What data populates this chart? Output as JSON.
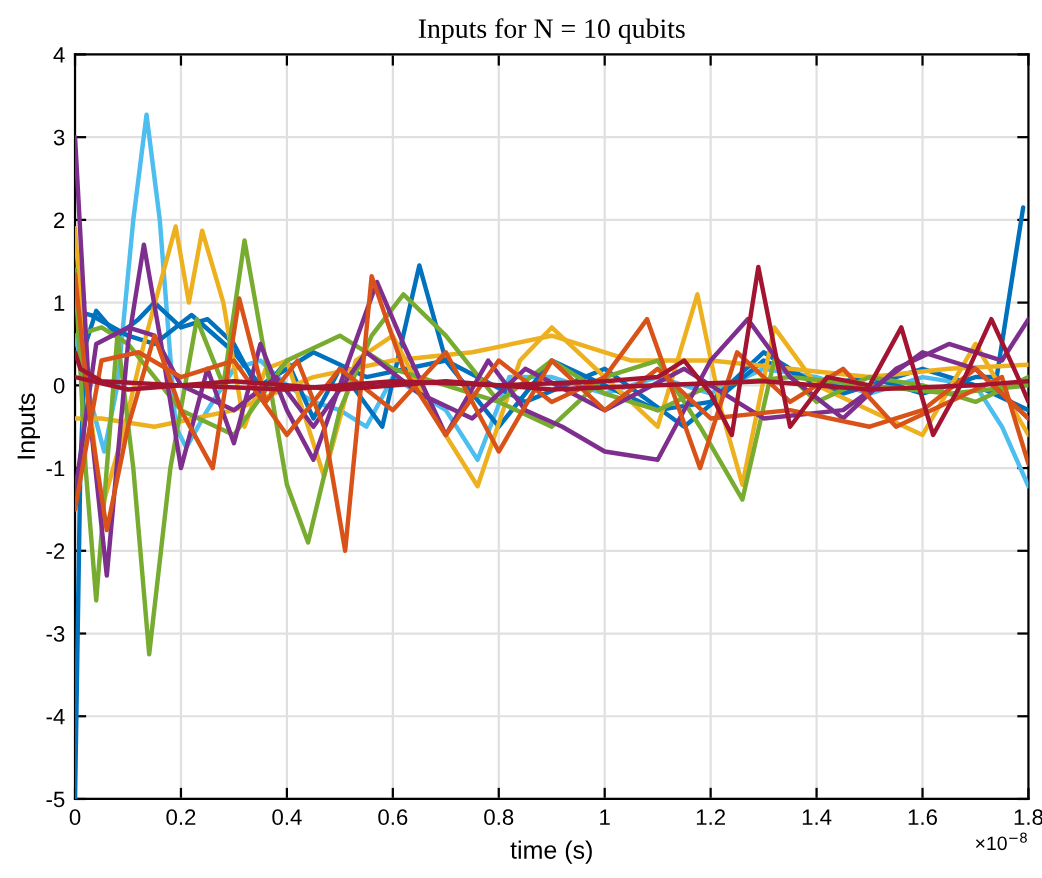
{
  "chart_data": {
    "type": "line",
    "title": "Inputs for N = 10 qubits",
    "xlabel": "time (s)",
    "ylabel": "Inputs",
    "annotations": [
      "×10$^{−8}$"
    ],
    "xlim": [
      0,
      1.8
    ],
    "ylim": [
      -5,
      4
    ],
    "xticks": [
      0,
      0.2,
      0.4,
      0.6,
      0.8,
      1,
      1.2,
      1.4,
      1.6,
      1.8
    ],
    "yticks": [
      -5,
      -4,
      -3,
      -2,
      -1,
      0,
      1,
      2,
      3,
      4
    ],
    "grid": true,
    "legend": false,
    "line_style": "solid",
    "marker": "none",
    "series": [
      {
        "color": "#4dbeee",
        "x": [
          0,
          0.03,
          0.055,
          0.08,
          0.11,
          0.135,
          0.16,
          0.19,
          0.21,
          0.25,
          0.3,
          0.35,
          0.4,
          0.45,
          0.5,
          0.55,
          0.6,
          0.7,
          0.76,
          0.82,
          0.9,
          1.0,
          1.1,
          1.2,
          1.3,
          1.4,
          1.5,
          1.6,
          1.7,
          1.75,
          1.8
        ],
        "values": [
          0.6,
          -0.2,
          -0.8,
          0.0,
          2.0,
          3.27,
          2.0,
          -0.5,
          -0.75,
          -0.3,
          0.2,
          0.3,
          0.0,
          -0.2,
          -0.3,
          -0.5,
          0.1,
          -0.3,
          -0.9,
          0.1,
          0.1,
          -0.1,
          0.1,
          -0.1,
          0.2,
          0.1,
          -0.1,
          0.1,
          0.0,
          -0.5,
          -1.22
        ]
      },
      {
        "color": "#0072bd",
        "x": [
          0,
          0.01,
          0.02,
          0.04,
          0.08,
          0.12,
          0.15,
          0.2,
          0.25,
          0.3,
          0.35,
          0.4,
          0.45,
          0.5,
          0.58,
          0.65,
          0.7,
          0.8,
          0.9,
          1.0,
          1.1,
          1.2,
          1.3,
          1.4,
          1.5,
          1.6,
          1.7,
          1.74,
          1.79
        ],
        "values": [
          -5,
          -1,
          0.5,
          0.9,
          0.6,
          0.8,
          1.0,
          0.7,
          0.8,
          0.5,
          -0.1,
          0.3,
          -0.4,
          0.2,
          -0.5,
          1.45,
          0.3,
          -0.5,
          0.3,
          0.0,
          -0.3,
          -0.2,
          0.4,
          0.0,
          0.1,
          -0.1,
          0.1,
          0.1,
          2.15
        ]
      },
      {
        "color": "#0072bd",
        "x": [
          0,
          0.03,
          0.1,
          0.15,
          0.22,
          0.3,
          0.35,
          0.45,
          0.55,
          0.7,
          0.85,
          1.0,
          1.15,
          1.3,
          1.45,
          1.6,
          1.7,
          1.8
        ],
        "values": [
          0.9,
          0.85,
          0.6,
          0.5,
          0.85,
          0.4,
          0.0,
          0.4,
          0.1,
          0.3,
          -0.2,
          0.2,
          -0.5,
          0.3,
          -0.1,
          0.2,
          0.0,
          -0.3
        ]
      },
      {
        "color": "#edb120",
        "x": [
          0,
          0.02,
          0.05,
          0.09,
          0.13,
          0.19,
          0.215,
          0.24,
          0.28,
          0.32,
          0.36,
          0.4,
          0.47,
          0.53,
          0.6,
          0.68,
          0.76,
          0.84,
          0.9,
          1.0,
          1.1,
          1.175,
          1.22,
          1.26,
          1.32,
          1.4,
          1.5,
          1.6,
          1.7,
          1.8
        ],
        "values": [
          1.9,
          0.2,
          -1.5,
          -0.6,
          0.5,
          1.92,
          1.0,
          1.87,
          1.0,
          -0.5,
          0.2,
          0.3,
          -1.1,
          0.3,
          0.6,
          -0.4,
          -1.22,
          0.3,
          0.7,
          0.1,
          -0.5,
          1.1,
          -0.3,
          -1.2,
          0.7,
          0.0,
          -0.3,
          -0.6,
          0.5,
          -0.6
        ]
      },
      {
        "color": "#edb120",
        "x": [
          0,
          0.05,
          0.15,
          0.3,
          0.45,
          0.6,
          0.75,
          0.9,
          1.05,
          1.2,
          1.35,
          1.5,
          1.65,
          1.8
        ],
        "values": [
          -0.4,
          -0.4,
          -0.5,
          -0.3,
          0.1,
          0.3,
          0.4,
          0.6,
          0.3,
          0.3,
          0.2,
          0.1,
          0.2,
          0.25
        ]
      },
      {
        "color": "#77ac30",
        "x": [
          0,
          0.02,
          0.04,
          0.08,
          0.11,
          0.14,
          0.18,
          0.23,
          0.28,
          0.32,
          0.36,
          0.4,
          0.44,
          0.5,
          0.56,
          0.62,
          0.7,
          0.8,
          0.9,
          1.0,
          1.1,
          1.18,
          1.26,
          1.32,
          1.4,
          1.5,
          1.6,
          1.7,
          1.8
        ],
        "values": [
          1.4,
          -1.0,
          -2.6,
          0.6,
          -1.0,
          -3.25,
          -1.0,
          0.8,
          0.0,
          1.75,
          0.3,
          -1.2,
          -1.9,
          -0.3,
          0.6,
          1.1,
          0.6,
          -0.2,
          -0.5,
          0.1,
          0.3,
          -0.5,
          -1.38,
          0.3,
          -0.2,
          0.1,
          0.0,
          -0.2,
          0.1
        ]
      },
      {
        "color": "#77ac30",
        "x": [
          0,
          0.05,
          0.1,
          0.2,
          0.3,
          0.4,
          0.5,
          0.6,
          0.7,
          0.8,
          0.9,
          1.0,
          1.1,
          1.2,
          1.35,
          1.5,
          1.65,
          1.8
        ],
        "values": [
          0.6,
          0.7,
          0.5,
          -0.3,
          -0.6,
          0.3,
          0.6,
          0.2,
          0.0,
          -0.2,
          0.3,
          -0.1,
          -0.3,
          0.0,
          0.1,
          0.0,
          -0.1,
          0.0
        ]
      },
      {
        "color": "#7e2f8e",
        "x": [
          0,
          0.03,
          0.06,
          0.1,
          0.13,
          0.16,
          0.2,
          0.25,
          0.3,
          0.35,
          0.4,
          0.45,
          0.5,
          0.57,
          0.62,
          0.7,
          0.78,
          0.85,
          0.92,
          1.0,
          1.1,
          1.2,
          1.27,
          1.35,
          1.45,
          1.55,
          1.65,
          1.75,
          1.8
        ],
        "values": [
          3.0,
          -0.5,
          -2.3,
          0.5,
          1.7,
          0.6,
          -1.0,
          0.2,
          -0.7,
          0.5,
          -0.3,
          -0.9,
          0.0,
          1.25,
          0.5,
          -0.6,
          0.3,
          -0.3,
          -0.5,
          -0.8,
          -0.9,
          0.3,
          0.8,
          0.1,
          -0.4,
          0.2,
          0.5,
          0.3,
          0.8
        ]
      },
      {
        "color": "#7e2f8e",
        "x": [
          0,
          0.04,
          0.1,
          0.15,
          0.2,
          0.3,
          0.38,
          0.45,
          0.55,
          0.65,
          0.75,
          0.85,
          1.0,
          1.15,
          1.3,
          1.45,
          1.6,
          1.7,
          1.8
        ],
        "values": [
          -1.3,
          0.5,
          0.7,
          0.6,
          0.0,
          -0.3,
          0.1,
          -0.5,
          0.4,
          -0.1,
          -0.4,
          0.2,
          -0.3,
          0.2,
          -0.4,
          -0.3,
          0.4,
          0.2,
          -0.4
        ]
      },
      {
        "color": "#d95319",
        "x": [
          0,
          0.03,
          0.06,
          0.1,
          0.15,
          0.2,
          0.26,
          0.31,
          0.36,
          0.42,
          0.47,
          0.51,
          0.56,
          0.62,
          0.7,
          0.8,
          0.9,
          1.0,
          1.08,
          1.18,
          1.25,
          1.35,
          1.45,
          1.55,
          1.65,
          1.75,
          1.8
        ],
        "values": [
          1.34,
          -0.5,
          -1.75,
          -0.5,
          0.6,
          -0.3,
          -1.0,
          1.05,
          -0.2,
          0.3,
          -0.5,
          -2.0,
          1.32,
          0.2,
          -0.6,
          0.3,
          -0.2,
          0.1,
          0.8,
          -1.0,
          0.4,
          -0.2,
          0.2,
          -0.5,
          -0.2,
          0.1,
          -0.95
        ]
      },
      {
        "color": "#d95319",
        "x": [
          0,
          0.05,
          0.12,
          0.2,
          0.3,
          0.4,
          0.5,
          0.6,
          0.7,
          0.8,
          0.9,
          1.0,
          1.1,
          1.2,
          1.35,
          1.5,
          1.6,
          1.7,
          1.8
        ],
        "values": [
          -1.5,
          0.3,
          0.4,
          0.1,
          0.3,
          -0.6,
          0.2,
          -0.3,
          0.4,
          -0.8,
          0.3,
          -0.3,
          0.2,
          -0.4,
          -0.3,
          -0.5,
          -0.3,
          0.2,
          -0.4
        ]
      },
      {
        "color": "#a2142f",
        "x": [
          0,
          0.01,
          0.05,
          0.2,
          0.4,
          0.6,
          0.8,
          1.0,
          1.1,
          1.15,
          1.2,
          1.24,
          1.29,
          1.35,
          1.42,
          1.5,
          1.56,
          1.62,
          1.68,
          1.73,
          1.78,
          1.8
        ],
        "values": [
          0.4,
          0.2,
          0.05,
          0.0,
          -0.05,
          0.05,
          0.0,
          0.05,
          0.1,
          0.3,
          -0.1,
          -0.6,
          1.43,
          -0.5,
          0.1,
          0.0,
          0.7,
          -0.6,
          0.1,
          0.8,
          0.1,
          -0.2
        ]
      },
      {
        "color": "#a2142f",
        "x": [
          0,
          0.1,
          0.3,
          0.5,
          0.7,
          0.9,
          1.1,
          1.3,
          1.5,
          1.7,
          1.8
        ],
        "values": [
          0.1,
          -0.05,
          0.05,
          -0.05,
          0.05,
          -0.05,
          0.0,
          0.05,
          -0.05,
          0.0,
          0.05
        ]
      }
    ]
  }
}
